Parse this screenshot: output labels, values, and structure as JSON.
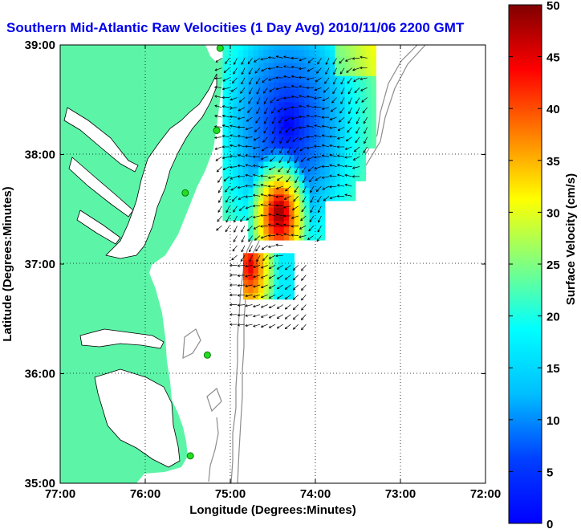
{
  "colors": {
    "land": "#5cf5a8",
    "water": "#ffffff",
    "title": "#0000ee",
    "coast": "#000000",
    "isobath": "#8c8c8c",
    "station": "#22dd22"
  },
  "chart_data": {
    "type": "heatmap",
    "title": "Southern Mid-Atlantic Raw Velocities (1 Day Avg) 2010/11/06 2200 GMT",
    "xlabel": "Longitude (Degrees:Minutes)",
    "ylabel": "Latitude (Degrees:Minutes)",
    "x_ticks": [
      "77:00",
      "76:00",
      "75:00",
      "74:00",
      "73:00",
      "72:00"
    ],
    "y_ticks": [
      "39:00",
      "38:00",
      "37:00",
      "36:00",
      "35:00"
    ],
    "xlim": [
      -77,
      -72
    ],
    "ylim": [
      35,
      39
    ],
    "grid": true,
    "colorbar": {
      "label": "Surface Velocity (cm/s)",
      "range": [
        0,
        50
      ],
      "ticks": [
        "0",
        "5",
        "10",
        "15",
        "20",
        "25",
        "30",
        "35",
        "40",
        "45",
        "50"
      ],
      "colormap": "jet"
    },
    "stations": [
      {
        "lon": -75.12,
        "lat": 38.97
      },
      {
        "lon": -75.16,
        "lat": 38.22
      },
      {
        "lon": -75.53,
        "lat": 37.65
      },
      {
        "lon": -75.27,
        "lat": 36.17
      },
      {
        "lon": -75.47,
        "lat": 35.25
      }
    ]
  }
}
